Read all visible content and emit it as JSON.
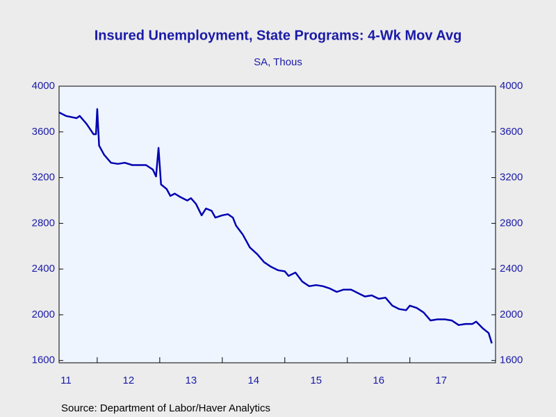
{
  "chart_data": {
    "type": "line",
    "title": "Insured Unemployment, State Programs: 4-Wk Mov Avg",
    "subtitle": "SA, Thous",
    "source": "Source:  Department of Labor/Haver Analytics",
    "x": [
      2011.39,
      2011.5,
      2011.67,
      2011.72,
      2011.83,
      2011.94,
      2011.98,
      2012.0,
      2012.03,
      2012.11,
      2012.22,
      2012.33,
      2012.44,
      2012.56,
      2012.67,
      2012.78,
      2012.89,
      2012.94,
      2012.98,
      2013.02,
      2013.11,
      2013.17,
      2013.24,
      2013.33,
      2013.44,
      2013.5,
      2013.58,
      2013.67,
      2013.74,
      2013.83,
      2013.89,
      2014.0,
      2014.09,
      2014.17,
      2014.22,
      2014.33,
      2014.44,
      2014.56,
      2014.67,
      2014.78,
      2014.89,
      2015.0,
      2015.06,
      2015.17,
      2015.28,
      2015.39,
      2015.5,
      2015.61,
      2015.72,
      2015.83,
      2015.94,
      2016.06,
      2016.17,
      2016.28,
      2016.39,
      2016.5,
      2016.61,
      2016.72,
      2016.83,
      2016.94,
      2017.0,
      2017.11,
      2017.22,
      2017.33,
      2017.44,
      2017.56,
      2017.67,
      2017.78,
      2017.89,
      2018.0,
      2018.06,
      2018.17,
      2018.26,
      2018.31
    ],
    "series": [
      {
        "color": "#0000b0",
        "values": [
          3770,
          3740,
          3720,
          3740,
          3670,
          3580,
          3580,
          3800,
          3480,
          3400,
          3330,
          3320,
          3330,
          3310,
          3310,
          3310,
          3270,
          3210,
          3460,
          3140,
          3100,
          3040,
          3060,
          3030,
          3000,
          3020,
          2970,
          2870,
          2930,
          2910,
          2850,
          2870,
          2880,
          2850,
          2780,
          2700,
          2590,
          2530,
          2460,
          2420,
          2390,
          2380,
          2340,
          2370,
          2290,
          2250,
          2260,
          2250,
          2230,
          2200,
          2220,
          2220,
          2190,
          2160,
          2170,
          2140,
          2150,
          2080,
          2050,
          2040,
          2080,
          2060,
          2020,
          1950,
          1960,
          1960,
          1950,
          1910,
          1920,
          1920,
          1940,
          1880,
          1840,
          1750
        ]
      }
    ],
    "xlim": [
      2011.39,
      2018.37
    ],
    "xticks": [
      {
        "value": 2011,
        "label": "11"
      },
      {
        "value": 2012,
        "label": "12"
      },
      {
        "value": 2013,
        "label": "13"
      },
      {
        "value": 2014,
        "label": "14"
      },
      {
        "value": 2015,
        "label": "15"
      },
      {
        "value": 2016,
        "label": "16"
      },
      {
        "value": 2017,
        "label": "17"
      }
    ],
    "ylim": [
      1580,
      4000
    ],
    "yticks": [
      1600,
      2000,
      2400,
      2800,
      3200,
      3600,
      4000
    ]
  }
}
